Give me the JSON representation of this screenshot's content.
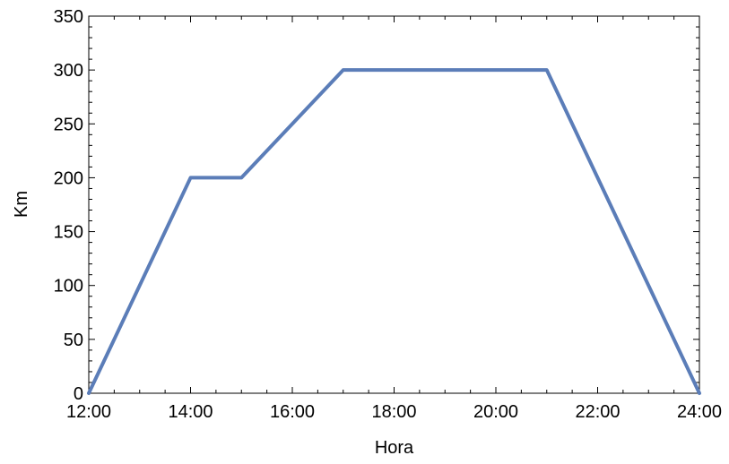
{
  "chart_data": {
    "type": "line",
    "title": "",
    "xlabel": "Hora",
    "ylabel": "Km",
    "xlim": [
      "12:00",
      "24:00"
    ],
    "ylim": [
      0,
      350
    ],
    "x_ticks": [
      "12:00",
      "14:00",
      "16:00",
      "18:00",
      "20:00",
      "22:00",
      "24:00"
    ],
    "y_ticks": [
      "0",
      "50",
      "100",
      "150",
      "200",
      "250",
      "300",
      "350"
    ],
    "grid": false,
    "legend": "none",
    "series": [
      {
        "color": "#5B7DB8",
        "x": [
          "12:00",
          "14:00",
          "15:00",
          "17:00",
          "21:00",
          "24:00"
        ],
        "y": [
          0,
          200,
          200,
          300,
          300,
          0
        ]
      }
    ]
  }
}
